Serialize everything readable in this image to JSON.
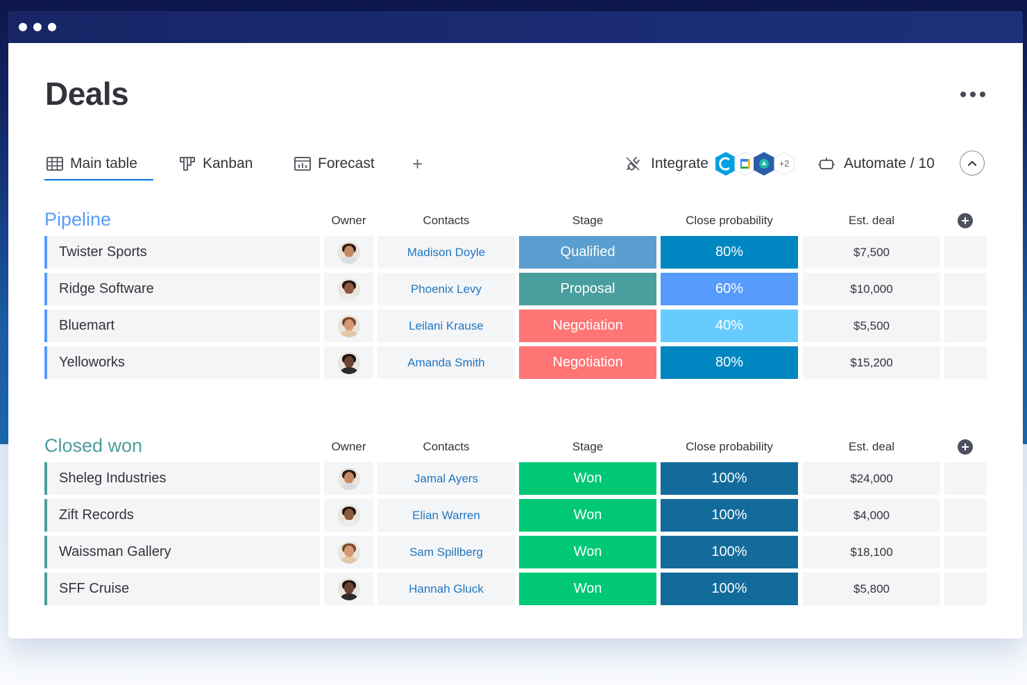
{
  "page": {
    "title": "Deals"
  },
  "tabs": [
    {
      "label": "Main table",
      "icon": "table-icon",
      "active": true
    },
    {
      "label": "Kanban",
      "icon": "kanban-icon",
      "active": false
    },
    {
      "label": "Forecast",
      "icon": "forecast-icon",
      "active": false
    }
  ],
  "toolbar": {
    "add_tab": "+",
    "integrate_label": "Integrate",
    "integrations_more": "+2",
    "automate_label": "Automate / 10"
  },
  "columns": {
    "owner": "Owner",
    "contacts": "Contacts",
    "stage": "Stage",
    "probability": "Close probability",
    "deal": "Est. deal"
  },
  "groups": [
    {
      "title": "Pipeline",
      "color": "#579bfc",
      "rows": [
        {
          "name": "Twister Sports",
          "contact": "Madison Doyle",
          "stage": "Qualified",
          "stage_color": "#5a9fcf",
          "probability": "80%",
          "probability_color": "#0086c0",
          "deal": "$7,500"
        },
        {
          "name": "Ridge Software",
          "contact": "Phoenix Levy",
          "stage": "Proposal",
          "stage_color": "#4a9e9d",
          "probability": "60%",
          "probability_color": "#579bfc",
          "deal": "$10,000"
        },
        {
          "name": "Bluemart",
          "contact": "Leilani Krause",
          "stage": "Negotiation",
          "stage_color": "#ff7575",
          "probability": "40%",
          "probability_color": "#66ccff",
          "deal": "$5,500"
        },
        {
          "name": "Yelloworks",
          "contact": "Amanda Smith",
          "stage": "Negotiation",
          "stage_color": "#ff7575",
          "probability": "80%",
          "probability_color": "#0086c0",
          "deal": "$15,200"
        }
      ]
    },
    {
      "title": "Closed won",
      "color": "#4a9e9d",
      "rows": [
        {
          "name": "Sheleg Industries",
          "contact": "Jamal Ayers",
          "stage": "Won",
          "stage_color": "#00c875",
          "probability": "100%",
          "probability_color": "#136b9c",
          "deal": "$24,000"
        },
        {
          "name": "Zift Records",
          "contact": "Elian Warren",
          "stage": "Won",
          "stage_color": "#00c875",
          "probability": "100%",
          "probability_color": "#136b9c",
          "deal": "$4,000"
        },
        {
          "name": "Waissman Gallery",
          "contact": "Sam Spillberg",
          "stage": "Won",
          "stage_color": "#00c875",
          "probability": "100%",
          "probability_color": "#136b9c",
          "deal": "$18,100"
        },
        {
          "name": "SFF Cruise",
          "contact": "Hannah Gluck",
          "stage": "Won",
          "stage_color": "#00c875",
          "probability": "100%",
          "probability_color": "#136b9c",
          "deal": "$5,800"
        }
      ]
    }
  ]
}
